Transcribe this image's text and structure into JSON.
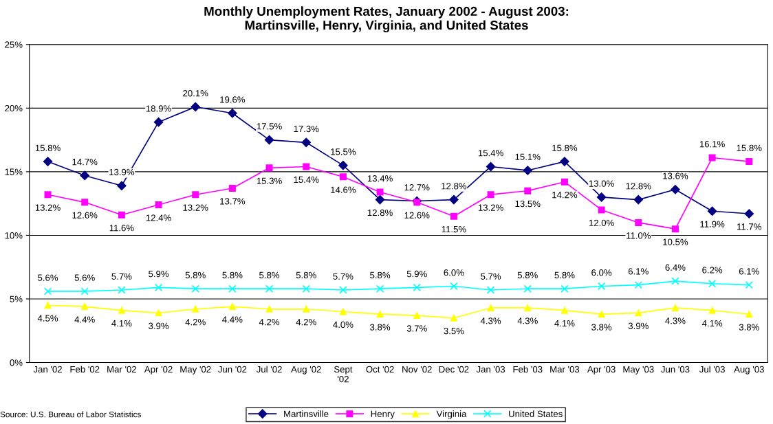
{
  "chart_data": {
    "type": "line",
    "title": "Monthly Unemployment Rates, January 2002 - August 2003:\nMartinsville, Henry, Virginia, and United States",
    "categories": [
      "Jan '02",
      "Feb '02",
      "Mar '02",
      "Apr '02",
      "May '02",
      "Jun '02",
      "Jul '02",
      "Aug '02",
      "Sept\n'02",
      "Oct '02",
      "Nov '02",
      "Dec '02",
      "Jan '03",
      "Feb '03",
      "Mar '03",
      "Apr '03",
      "May '03",
      "Jun '03",
      "Jul '03",
      "Aug '03"
    ],
    "series": [
      {
        "name": "Martinsville",
        "color": "#000080",
        "marker": "diamond",
        "values": [
          15.8,
          14.7,
          13.9,
          18.9,
          20.1,
          19.6,
          17.5,
          17.3,
          15.5,
          12.8,
          12.7,
          12.8,
          15.4,
          15.1,
          15.8,
          13.0,
          12.8,
          13.6,
          11.9,
          11.7
        ],
        "value_labels": [
          "15.8%",
          "14.7%",
          "13.9%",
          "18.9%",
          "20.1%",
          "19.6%",
          "17.5%",
          "17.3%",
          "15.5%",
          "12.8%",
          "12.7%",
          "12.8%",
          "15.4%",
          "15.1%",
          "15.8%",
          "13.0%",
          "12.8%",
          "13.6%",
          "11.9%",
          "11.7%"
        ]
      },
      {
        "name": "Henry",
        "color": "#ff00ff",
        "marker": "square",
        "values": [
          13.2,
          12.6,
          11.6,
          12.4,
          13.2,
          13.7,
          15.3,
          15.4,
          14.6,
          13.4,
          12.6,
          11.5,
          13.2,
          13.5,
          14.2,
          12.0,
          11.0,
          10.5,
          16.1,
          15.8
        ],
        "value_labels": [
          "13.2%",
          "12.6%",
          "11.6%",
          "12.4%",
          "13.2%",
          "13.7%",
          "15.3%",
          "15.4%",
          "14.6%",
          "13.4%",
          "12.6%",
          "11.5%",
          "13.2%",
          "13.5%",
          "14.2%",
          "12.0%",
          "11.0%",
          "10.5%",
          "16.1%",
          "15.8%"
        ]
      },
      {
        "name": "Virginia",
        "color": "#ffff00",
        "marker": "triangle",
        "values": [
          4.5,
          4.4,
          4.1,
          3.9,
          4.2,
          4.4,
          4.2,
          4.2,
          4.0,
          3.8,
          3.7,
          3.5,
          4.3,
          4.3,
          4.1,
          3.8,
          3.9,
          4.3,
          4.1,
          3.8
        ],
        "value_labels": [
          "4.5%",
          "4.4%",
          "4.1%",
          "3.9%",
          "4.2%",
          "4.4%",
          "4.2%",
          "4.2%",
          "4.0%",
          "3.8%",
          "3.7%",
          "3.5%",
          "4.3%",
          "4.3%",
          "4.1%",
          "3.8%",
          "3.9%",
          "4.3%",
          "4.1%",
          "3.8%"
        ]
      },
      {
        "name": "United States",
        "color": "#00ffff",
        "marker": "cross",
        "values": [
          5.6,
          5.6,
          5.7,
          5.9,
          5.8,
          5.8,
          5.8,
          5.8,
          5.7,
          5.8,
          5.9,
          6.0,
          5.7,
          5.8,
          5.8,
          6.0,
          6.1,
          6.4,
          6.2,
          6.1
        ],
        "value_labels": [
          "5.6%",
          "5.6%",
          "5.7%",
          "5.9%",
          "5.8%",
          "5.8%",
          "5.8%",
          "5.8%",
          "5.7%",
          "5.8%",
          "5.9%",
          "6.0%",
          "5.7%",
          "5.8%",
          "5.8%",
          "6.0%",
          "6.1%",
          "6.4%",
          "6.2%",
          "6.1%"
        ]
      }
    ],
    "ylim": [
      0,
      25
    ],
    "yticks": [
      {
        "value": 0,
        "label": "0%"
      },
      {
        "value": 5,
        "label": "5%"
      },
      {
        "value": 10,
        "label": "10%"
      },
      {
        "value": 15,
        "label": "15%"
      },
      {
        "value": 20,
        "label": "20%"
      },
      {
        "value": 25,
        "label": "25%"
      }
    ],
    "grid": "y",
    "legend": "bottom",
    "line_style": "solid",
    "annotations": [
      "Source: U.S. Bureau of Labor Statistics"
    ]
  }
}
